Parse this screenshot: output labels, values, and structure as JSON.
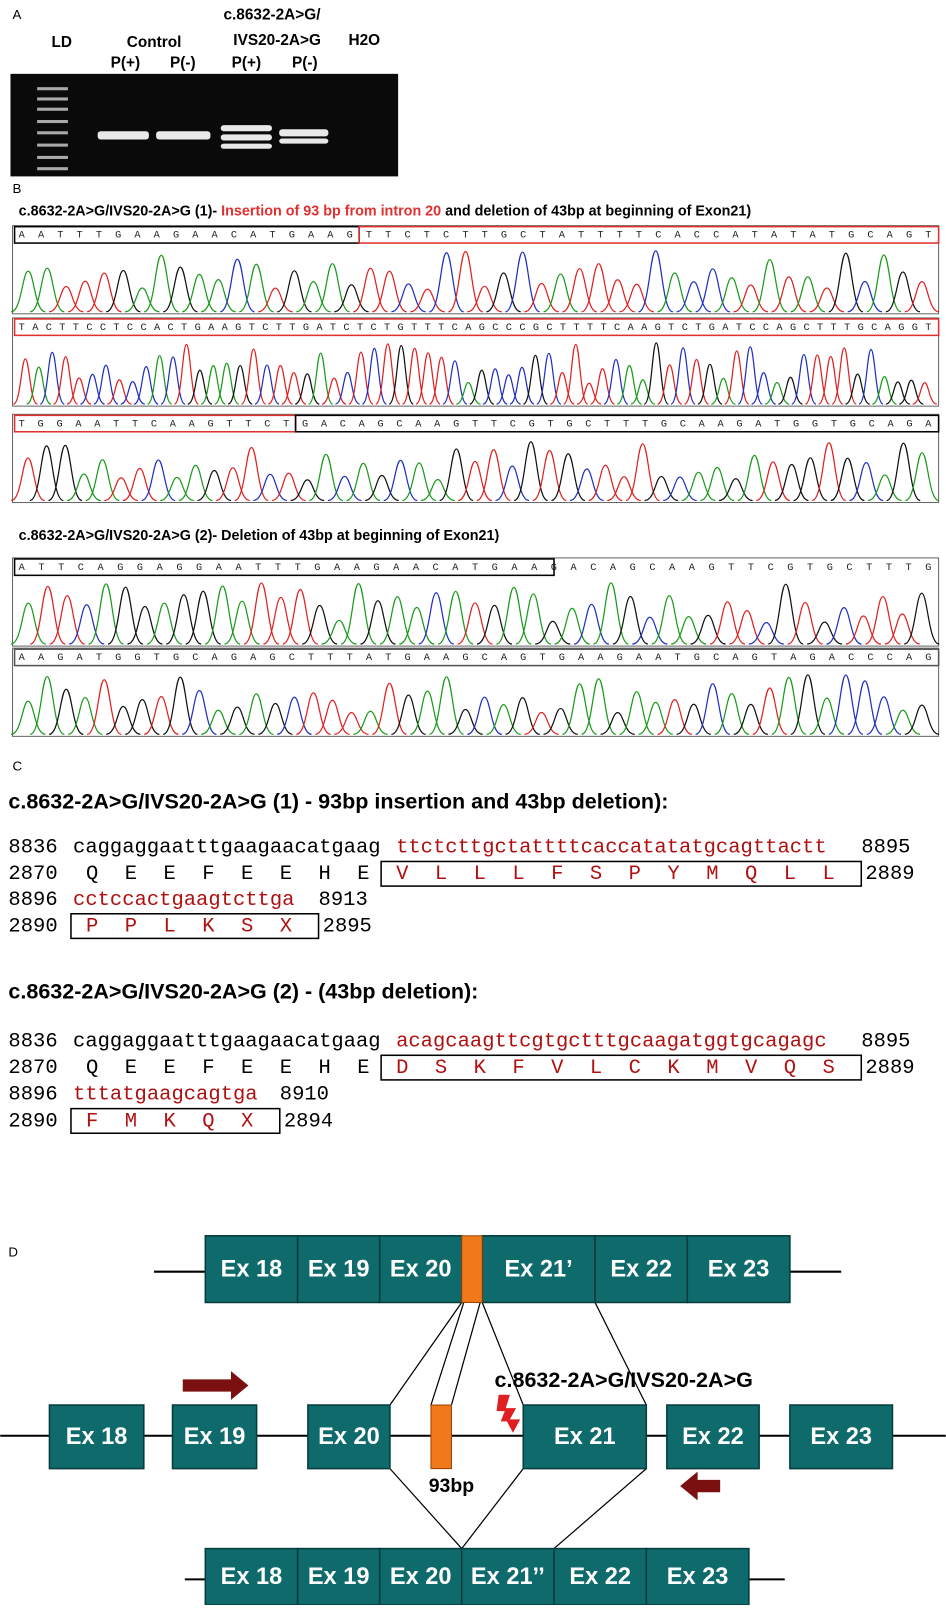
{
  "panel_a": {
    "label": "A",
    "ladder": "LD",
    "control": "Control",
    "mutant_line1": "c.8632-2A>G/",
    "mutant_line2": "IVS20-2A>G",
    "water": "H2O",
    "lanes": [
      "P(+)",
      "P(-)",
      "P(+)",
      "P(-)"
    ]
  },
  "panel_b": {
    "label": "B",
    "trace_1": {
      "title": [
        "c.8632-2A>G/IVS20-2A>G (1)- ",
        "Insertion of 93 bp from intron 20",
        " and deletion of 43bp at beginning of Exon21)"
      ],
      "rows": [
        "AATTTGAAGAACATGAAGTTCTCTTGCTATTTTCACCATATATGCAGT",
        "TACTTCCTCCACTGAAGTCTTGATCTCTGTTTCAGCCCGCTTTTCAAGTCTGATCCAGCTTTGCAGGT",
        "TGGAATTCAAGTTCTGACAGCAAGTTCGTGCTTTGCAAGATGGTGCAGA"
      ]
    },
    "trace_2": {
      "title": "c.8632-2A>G/IVS20-2A>G (2)- Deletion of 43bp at beginning of Exon21)",
      "rows": [
        "ATTCAGGAGGAATTTGAAGAACATGAAGACAGCAAGTTCGTGCTTTG",
        "AAGATGGTGCAGAGCTTTATGAAGCAGTGAAGAATGCAGTAGACCCAG"
      ]
    }
  },
  "panel_c": {
    "label": "C",
    "blocks": [
      {
        "title": "c.8632-2A>G/IVS20-2A>G (1) - 93bp insertion and 43bp deletion):",
        "lines": [
          {
            "start": 8836,
            "seq": "caggaggaatttgaagaacatgaag",
            "seq_changed": "ttctcttgctattttcaccatatatgcagttactt",
            "end": 8895,
            "aa_start": 2870,
            "aa": [
              "Q",
              "E",
              "E",
              "F",
              "E",
              "E",
              "H",
              "E"
            ],
            "aa_changed": [
              "V",
              "L",
              "L",
              "L",
              "F",
              "S",
              "P",
              "Y",
              "M",
              "Q",
              "L",
              "L"
            ],
            "aa_end": 2889
          },
          {
            "start": 8896,
            "seq": "",
            "seq_changed": "cctccactgaagtcttga",
            "end": 8913,
            "aa_start": 2890,
            "aa": [],
            "aa_changed": [
              "P",
              "P",
              "L",
              "K",
              "S",
              "X"
            ],
            "aa_end": 2895
          }
        ]
      },
      {
        "title": "c.8632-2A>G/IVS20-2A>G (2) - (43bp deletion):",
        "lines": [
          {
            "start": 8836,
            "seq": "caggaggaatttgaagaacatgaag",
            "seq_changed": "acagcaagttcgtgctttgcaagatggtgcagagc",
            "end": 8895,
            "aa_start": 2870,
            "aa": [
              "Q",
              "E",
              "E",
              "F",
              "E",
              "E",
              "H",
              "E"
            ],
            "aa_changed": [
              "D",
              "S",
              "K",
              "F",
              "V",
              "L",
              "C",
              "K",
              "M",
              "V",
              "Q",
              "S"
            ],
            "aa_end": 2889
          },
          {
            "start": 8896,
            "seq": "",
            "seq_changed": "tttatgaagcagtga",
            "end": 8910,
            "aa_start": 2890,
            "aa": [],
            "aa_changed": [
              "F",
              "M",
              "K",
              "Q",
              "X"
            ],
            "aa_end": 2894
          }
        ]
      }
    ]
  },
  "panel_d": {
    "label": "D",
    "top_exons": [
      "Ex 18",
      "Ex 19",
      "Ex 20",
      "Ex 21’",
      "Ex 22",
      "Ex 23"
    ],
    "middle_exons": [
      "Ex 18",
      "Ex 19",
      "Ex 20",
      "Ex 21",
      "Ex 22",
      "Ex 23"
    ],
    "bottom_exons": [
      "Ex 18",
      "Ex 19",
      "Ex 20",
      "Ex 21’’",
      "Ex 22",
      "Ex 23"
    ],
    "insert_label": "93bp",
    "mutation_label": "c.8632-2A>G/IVS20-2A>G"
  }
}
